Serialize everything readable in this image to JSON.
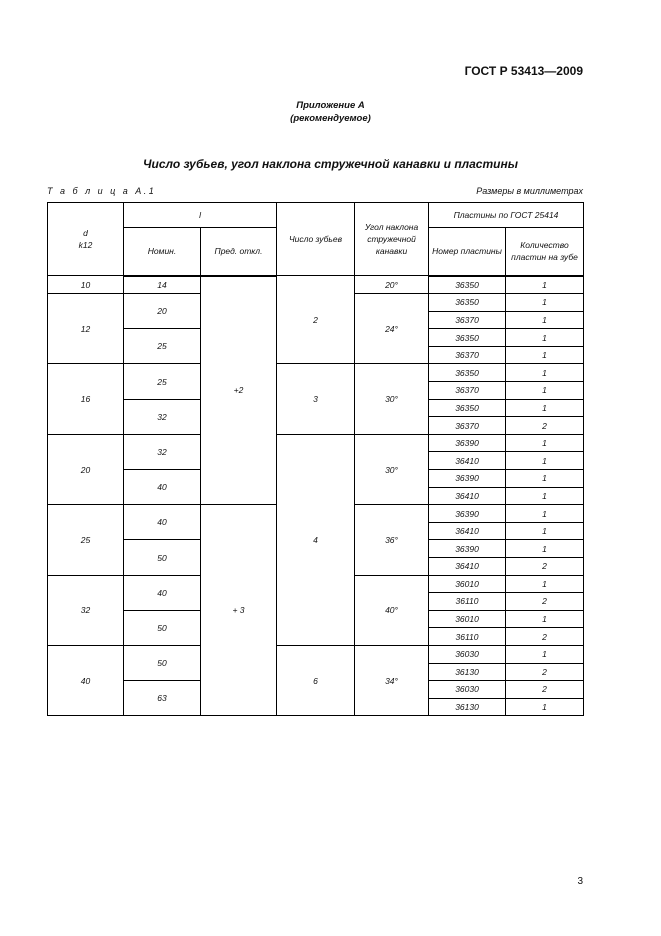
{
  "header": {
    "standard": "ГОСТ Р 53413—2009"
  },
  "annex": {
    "line1": "Приложение А",
    "line2": "(рекомендуемое)"
  },
  "title": "Число зубьев, угол наклона стружечной канавки и пластины",
  "table_label": "Т а б л и ц а  А.1",
  "units": "Размеры в миллиметрах",
  "table": {
    "headers": {
      "d": "d",
      "d_tol": "k12",
      "l": "l",
      "l_nom": "Номин.",
      "l_dev": "Пред. откл.",
      "teeth": "Число зубьев",
      "angle": "Угол наклона стружечной канавки",
      "plates": "Пластины по ГОСТ 25414",
      "plate_no": "Номер пластины",
      "plate_qty": "Количество пластин на зубе"
    },
    "d": [
      {
        "v": "10",
        "span": 1
      },
      {
        "v": "12",
        "span": 4
      },
      {
        "v": "16",
        "span": 4
      },
      {
        "v": "20",
        "span": 4
      },
      {
        "v": "25",
        "span": 4
      },
      {
        "v": "32",
        "span": 4
      },
      {
        "v": "40",
        "span": 4
      }
    ],
    "l_nom": [
      {
        "v": "14",
        "span": 1
      },
      {
        "v": "20",
        "span": 2
      },
      {
        "v": "25",
        "span": 2
      },
      {
        "v": "25",
        "span": 2
      },
      {
        "v": "32",
        "span": 2
      },
      {
        "v": "32",
        "span": 2
      },
      {
        "v": "40",
        "span": 2
      },
      {
        "v": "40",
        "span": 2
      },
      {
        "v": "50",
        "span": 2
      },
      {
        "v": "40",
        "span": 2
      },
      {
        "v": "50",
        "span": 2
      },
      {
        "v": "50",
        "span": 2
      },
      {
        "v": "63",
        "span": 2
      }
    ],
    "l_dev": [
      {
        "v": "+2",
        "span": 13
      },
      {
        "v": "+ 3",
        "span": 12
      }
    ],
    "teeth": [
      {
        "v": "2",
        "span": 5
      },
      {
        "v": "3",
        "span": 4
      },
      {
        "v": "4",
        "span": 12
      },
      {
        "v": "6",
        "span": 4
      }
    ],
    "angle": [
      {
        "v": "20°",
        "span": 1
      },
      {
        "v": "24°",
        "span": 4
      },
      {
        "v": "30°",
        "span": 4
      },
      {
        "v": "30°",
        "span": 4
      },
      {
        "v": "36°",
        "span": 4
      },
      {
        "v": "40°",
        "span": 4
      },
      {
        "v": "34°",
        "span": 4
      }
    ],
    "plate_no": [
      "36350",
      "36350",
      "36370",
      "36350",
      "36370",
      "36350",
      "36370",
      "36350",
      "36370",
      "36390",
      "36410",
      "36390",
      "36410",
      "36390",
      "36410",
      "36390",
      "36410",
      "36010",
      "36110",
      "36010",
      "36110",
      "36030",
      "36130",
      "36030",
      "36130"
    ],
    "plate_qty": [
      "1",
      "1",
      "1",
      "1",
      "1",
      "1",
      "1",
      "1",
      "2",
      "1",
      "1",
      "1",
      "1",
      "1",
      "1",
      "1",
      "2",
      "1",
      "2",
      "1",
      "2",
      "1",
      "2",
      "2",
      "1"
    ]
  },
  "page_number": "3"
}
